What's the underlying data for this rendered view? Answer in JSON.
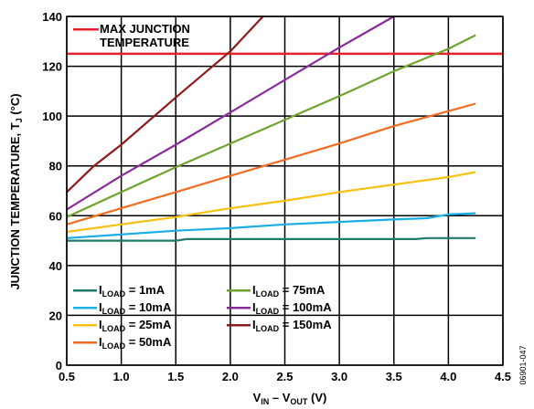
{
  "chart_data": {
    "type": "line",
    "xlabel": {
      "main": "V",
      "sub1": "IN",
      "mid": " – V",
      "sub2": "OUT",
      "unit": " (V)"
    },
    "ylabel": {
      "main": "JUNCTION TEMPERATURE, T",
      "sub": "J",
      "unit": " (°C)"
    },
    "xlim": [
      0.5,
      4.5
    ],
    "ylim": [
      0,
      140
    ],
    "xticks": [
      0.5,
      1.0,
      1.5,
      2.0,
      2.5,
      3.0,
      3.5,
      4.0,
      4.5
    ],
    "xtick_labels": [
      "0.5",
      "1.0",
      "1.5",
      "2.0",
      "2.5",
      "3.0",
      "3.5",
      "4.0",
      "4.5"
    ],
    "yticks": [
      0,
      20,
      40,
      60,
      80,
      100,
      120,
      140
    ],
    "ytick_labels": [
      "0",
      "20",
      "40",
      "60",
      "80",
      "100",
      "120",
      "140"
    ],
    "grid": true,
    "reference_line": {
      "label_line1": "MAX JUNCTION",
      "label_line2": "TEMPERATURE",
      "y": 125,
      "color": "#e8202a"
    },
    "series": [
      {
        "name": "1mA",
        "prefix": "I",
        "sub": "LOAD",
        "color": "#1f7a6c",
        "x": [
          0.5,
          1.0,
          1.5,
          1.6,
          2.0,
          2.5,
          3.0,
          3.5,
          3.7,
          3.8,
          4.25
        ],
        "y": [
          50,
          50,
          50,
          50.6,
          50.6,
          50.6,
          50.6,
          50.6,
          50.6,
          51,
          51
        ]
      },
      {
        "name": "10mA",
        "prefix": "I",
        "sub": "LOAD",
        "color": "#1aaee4",
        "x": [
          0.5,
          1.0,
          1.5,
          2.0,
          2.5,
          3.0,
          3.5,
          3.8,
          4.0,
          4.25
        ],
        "y": [
          51,
          52.5,
          54,
          55,
          56.5,
          57.5,
          58.5,
          59,
          60.5,
          61
        ]
      },
      {
        "name": "25mA",
        "prefix": "I",
        "sub": "LOAD",
        "color": "#f5c10c",
        "x": [
          0.5,
          1.0,
          1.5,
          2.0,
          2.5,
          3.0,
          3.5,
          4.0,
          4.25
        ],
        "y": [
          53.5,
          56.5,
          59.5,
          63,
          66,
          69.5,
          72.5,
          75.5,
          77.5
        ]
      },
      {
        "name": "50mA",
        "prefix": "I",
        "sub": "LOAD",
        "color": "#f26b21",
        "x": [
          0.5,
          1.0,
          1.5,
          2.0,
          2.5,
          3.0,
          3.5,
          4.0,
          4.25
        ],
        "y": [
          56.5,
          63,
          69.5,
          76,
          82.5,
          89,
          96,
          102,
          105
        ]
      },
      {
        "name": "75mA",
        "prefix": "I",
        "sub": "LOAD",
        "color": "#6fa32e",
        "x": [
          0.5,
          1.0,
          1.5,
          2.0,
          2.5,
          3.0,
          3.5,
          4.0,
          4.25
        ],
        "y": [
          59.5,
          69.5,
          79.5,
          89,
          98.5,
          108,
          118,
          127,
          132.5
        ]
      },
      {
        "name": "100mA",
        "prefix": "I",
        "sub": "LOAD",
        "color": "#8a2b9c",
        "x": [
          0.5,
          1.0,
          1.5,
          2.0,
          2.5,
          3.0,
          3.5
        ],
        "y": [
          62.5,
          76,
          88.5,
          101.5,
          114.5,
          127.5,
          140
        ]
      },
      {
        "name": "150mA",
        "prefix": "I",
        "sub": "LOAD",
        "color": "#8c1b1f",
        "x": [
          0.5,
          0.75,
          1.0,
          1.5,
          2.0,
          2.3
        ],
        "y": [
          69.5,
          80,
          88.5,
          107.5,
          126,
          140
        ]
      }
    ],
    "legend_placement": "bottom-left",
    "figure_id": "06901-047"
  }
}
